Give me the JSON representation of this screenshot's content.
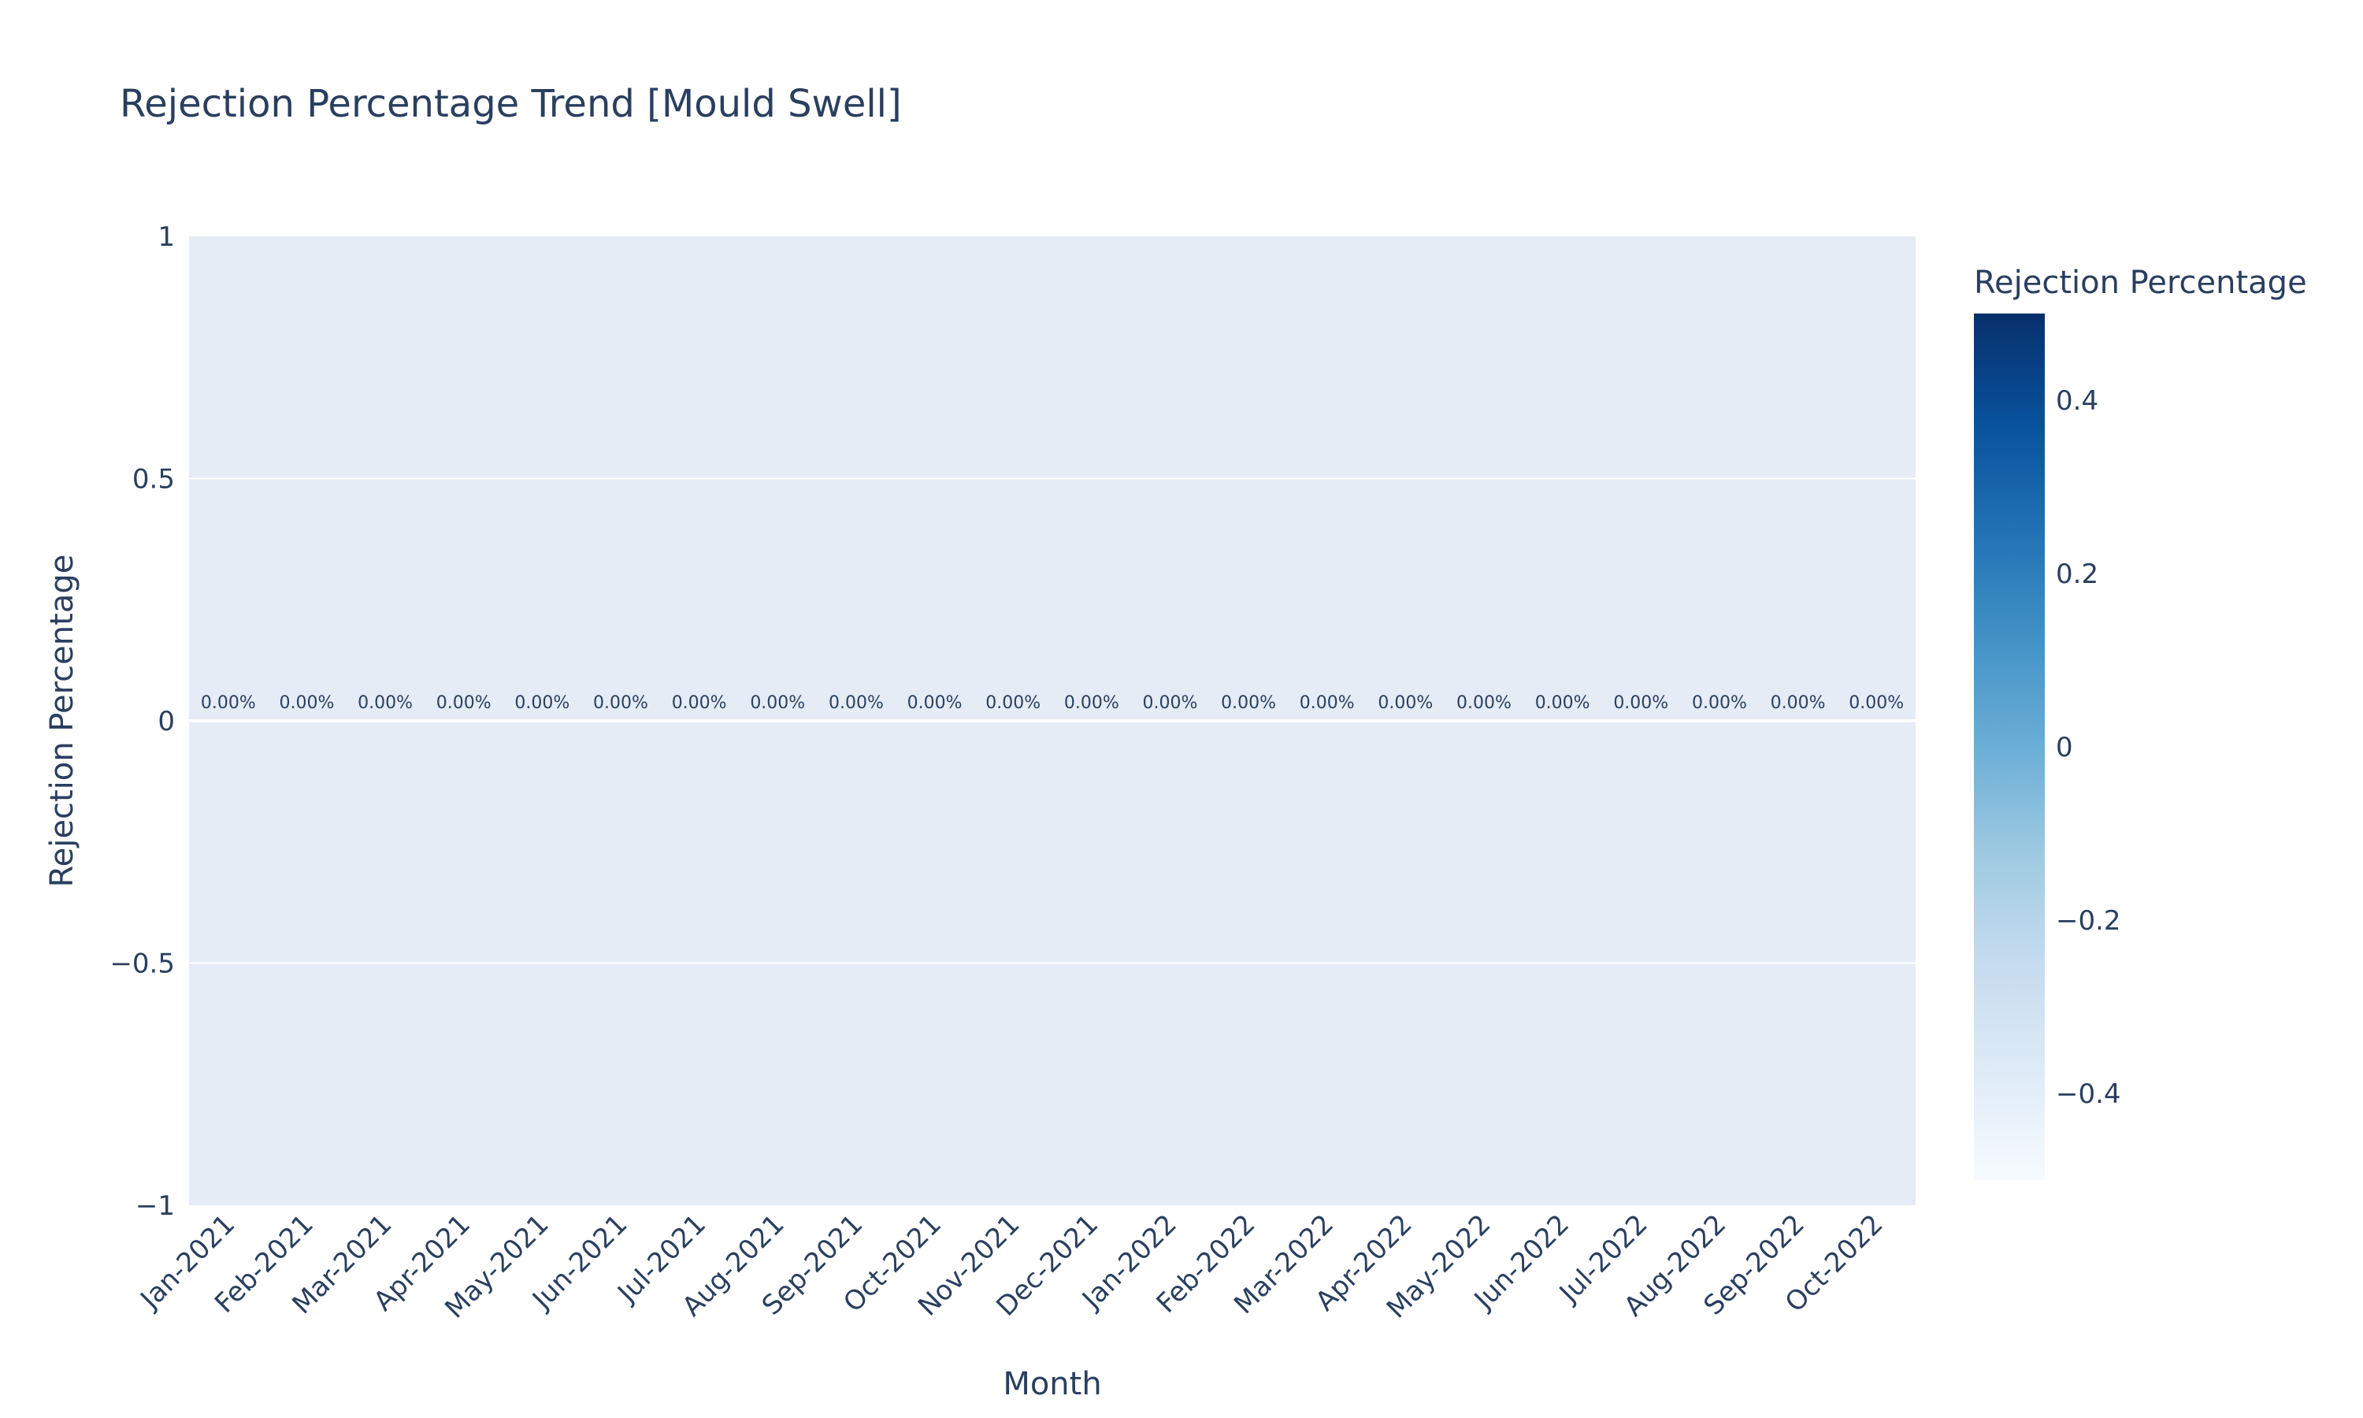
{
  "chart_data": {
    "type": "bar",
    "title": "Rejection Percentage Trend [Mould Swell]",
    "xlabel": "Month",
    "ylabel": "Rejection Percentage",
    "categories": [
      "Jan-2021",
      "Feb-2021",
      "Mar-2021",
      "Apr-2021",
      "May-2021",
      "Jun-2021",
      "Jul-2021",
      "Aug-2021",
      "Sep-2021",
      "Oct-2021",
      "Nov-2021",
      "Dec-2021",
      "Jan-2022",
      "Feb-2022",
      "Mar-2022",
      "Apr-2022",
      "May-2022",
      "Jun-2022",
      "Jul-2022",
      "Aug-2022",
      "Sep-2022",
      "Oct-2022"
    ],
    "values": [
      0,
      0,
      0,
      0,
      0,
      0,
      0,
      0,
      0,
      0,
      0,
      0,
      0,
      0,
      0,
      0,
      0,
      0,
      0,
      0,
      0,
      0
    ],
    "data_labels": [
      "0.00%",
      "0.00%",
      "0.00%",
      "0.00%",
      "0.00%",
      "0.00%",
      "0.00%",
      "0.00%",
      "0.00%",
      "0.00%",
      "0.00%",
      "0.00%",
      "0.00%",
      "0.00%",
      "0.00%",
      "0.00%",
      "0.00%",
      "0.00%",
      "0.00%",
      "0.00%",
      "0.00%",
      "0.00%"
    ],
    "ylim": [
      -1,
      1
    ],
    "yticks": [
      1,
      0.5,
      0,
      -0.5,
      -1
    ],
    "ytick_labels": [
      "1",
      "0.5",
      "0",
      "−0.5",
      "−1"
    ],
    "grid": true,
    "colors": {
      "plot_bg": "#e5ecf6",
      "grid": "#ffffff",
      "text": "#2a3f5f"
    },
    "colorbar": {
      "title": "Rejection Percentage",
      "range": [
        -0.5,
        0.5
      ],
      "ticks": [
        0.4,
        0.2,
        0,
        -0.2,
        -0.4
      ],
      "tick_labels": [
        "0.4",
        "0.2",
        "0",
        "−0.2",
        "−0.4"
      ],
      "colorscale": "Blues",
      "colors": [
        "#f7fbff",
        "#deebf7",
        "#c6dbef",
        "#9ecae1",
        "#6baed6",
        "#4292c6",
        "#2171b5",
        "#08519c",
        "#08306b"
      ]
    }
  }
}
